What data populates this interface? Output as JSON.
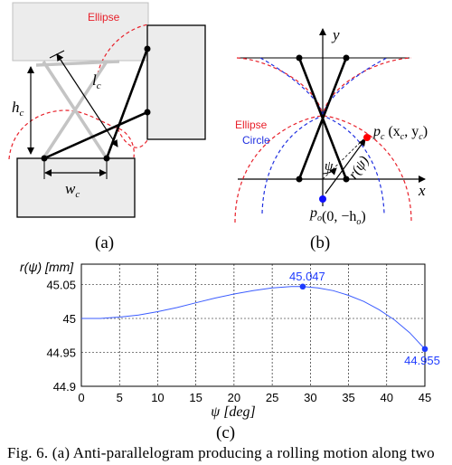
{
  "panel_a": {
    "ellipse_label": "Ellipse",
    "hc_label": "h",
    "hc_sub": "c",
    "lc_label": "l",
    "lc_sub": "c",
    "wc_label": "w",
    "wc_sub": "c",
    "panel_label": "(a)"
  },
  "panel_b": {
    "y_axis_label": "y",
    "x_axis_label": "x",
    "ellipse_label": "Ellipse",
    "circle_label": "Circle",
    "psi_label": "ψ",
    "r_label": "r(ψ)",
    "pc_label": "p",
    "pc_sub": "c",
    "pc_coords": "(x",
    "pc_coords_sub": "c",
    "pc_coords_mid": ", y",
    "pc_coords_sub2": "c",
    "pc_coords_end": ")",
    "po_label": "p",
    "po_sub": "o",
    "po_coords": "(0, −h",
    "po_coords_sub": "o",
    "po_coords_end": ")",
    "panel_label": "(b)"
  },
  "panel_c": {
    "panel_label": "(c)"
  },
  "colors": {
    "ellipse": "#e8202a",
    "circle": "#2030e0",
    "curve": "#3b5cff",
    "point_red": "#ff0000",
    "point_blue": "#1010ff",
    "box_fill": "#ececec",
    "gray_link": "#c0c0c0"
  },
  "chart_data": {
    "type": "line",
    "title": "",
    "xlabel": "ψ [deg]",
    "ylabel": "r(ψ) [mm]",
    "xlim": [
      0,
      45
    ],
    "ylim": [
      44.9,
      45.08
    ],
    "xticks": [
      0,
      5,
      10,
      15,
      20,
      25,
      30,
      35,
      40,
      45
    ],
    "yticks": [
      44.9,
      44.95,
      45,
      45.05
    ],
    "ytick_labels": [
      "44.9",
      "44.95",
      "45",
      "45.05"
    ],
    "grid": true,
    "series": [
      {
        "x": [
          0,
          2.5,
          5,
          7.5,
          10,
          12.5,
          15,
          17.5,
          20,
          22.5,
          25,
          27.5,
          29,
          31,
          33,
          35,
          37,
          39,
          41,
          43,
          45
        ],
        "y": [
          45.0,
          45.0,
          45.002,
          45.005,
          45.01,
          45.016,
          45.023,
          45.03,
          45.036,
          45.041,
          45.045,
          45.047,
          45.047,
          45.045,
          45.041,
          45.034,
          45.025,
          45.013,
          44.998,
          44.979,
          44.955
        ]
      }
    ],
    "markers": [
      {
        "x": 29,
        "y": 45.047,
        "label": "45.047"
      },
      {
        "x": 45,
        "y": 44.955,
        "label": "44.955"
      }
    ]
  },
  "caption": {
    "text": "Fig. 6. (a) Anti-parallelogram producing a rolling motion along two"
  }
}
